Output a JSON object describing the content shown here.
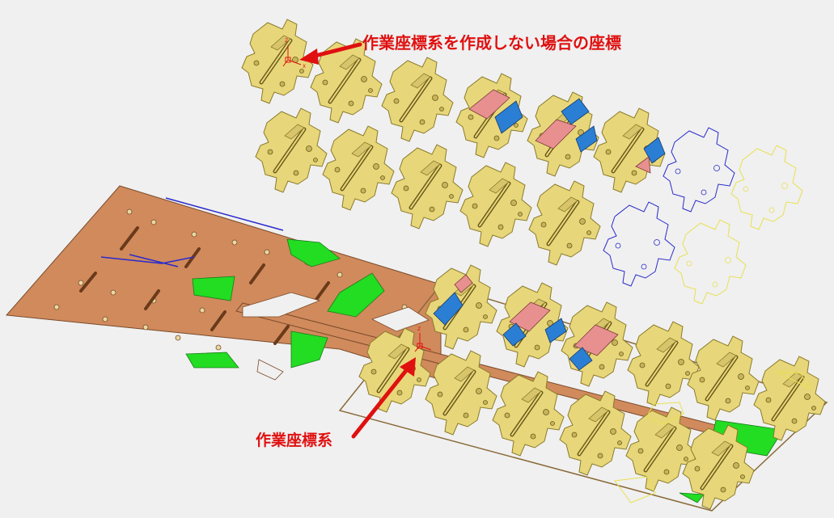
{
  "labels": {
    "top": "作業座標系を作成しない場合の座標",
    "bottom": "作業座標系"
  },
  "axis_letters": {
    "z": "Z",
    "x": "X"
  },
  "colors": {
    "background": "#f0f0f0",
    "part_fill": "#e8d77a",
    "part_stroke": "#8a7a2a",
    "strip_fill": "#d08a5c",
    "strip_stroke": "#7a4a2a",
    "highlight_green": "#22dd22",
    "highlight_blue": "#2a7fd4",
    "highlight_pink": "#e89090",
    "outline_blue": "#2a2acc",
    "outline_yellow": "#f4f070",
    "annotation_red": "#e01010"
  }
}
